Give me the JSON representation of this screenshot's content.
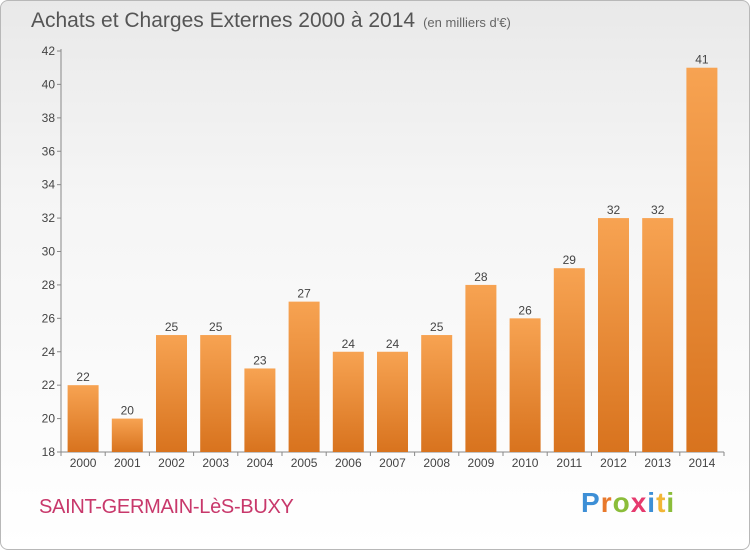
{
  "chart_data": {
    "type": "bar",
    "title": "Achats et Charges Externes 2000 à 2014",
    "subtitle": "(en milliers d'€)",
    "xlabel": "",
    "ylabel": "",
    "categories": [
      "2000",
      "2001",
      "2002",
      "2003",
      "2004",
      "2005",
      "2006",
      "2007",
      "2008",
      "2009",
      "2010",
      "2011",
      "2012",
      "2013",
      "2014"
    ],
    "values": [
      22,
      20,
      25,
      25,
      23,
      27,
      24,
      24,
      25,
      28,
      26,
      29,
      32,
      32,
      41
    ],
    "ylim": [
      18,
      42
    ],
    "yticks": [
      18,
      20,
      22,
      24,
      26,
      28,
      30,
      32,
      34,
      36,
      38,
      40,
      42
    ],
    "grid": false,
    "legend": "none",
    "bar_color": "#f0913a"
  },
  "footer": {
    "city": "SAINT-GERMAIN-LèS-BUXY",
    "brand": "Proxiti"
  },
  "colors": {
    "city": "#c8386b",
    "brand_letters": [
      "#3d8fd6",
      "#e8792c",
      "#8bbd3a",
      "#e63a6e",
      "#3d8fd6",
      "#f2b635",
      "#8bbd3a"
    ]
  }
}
